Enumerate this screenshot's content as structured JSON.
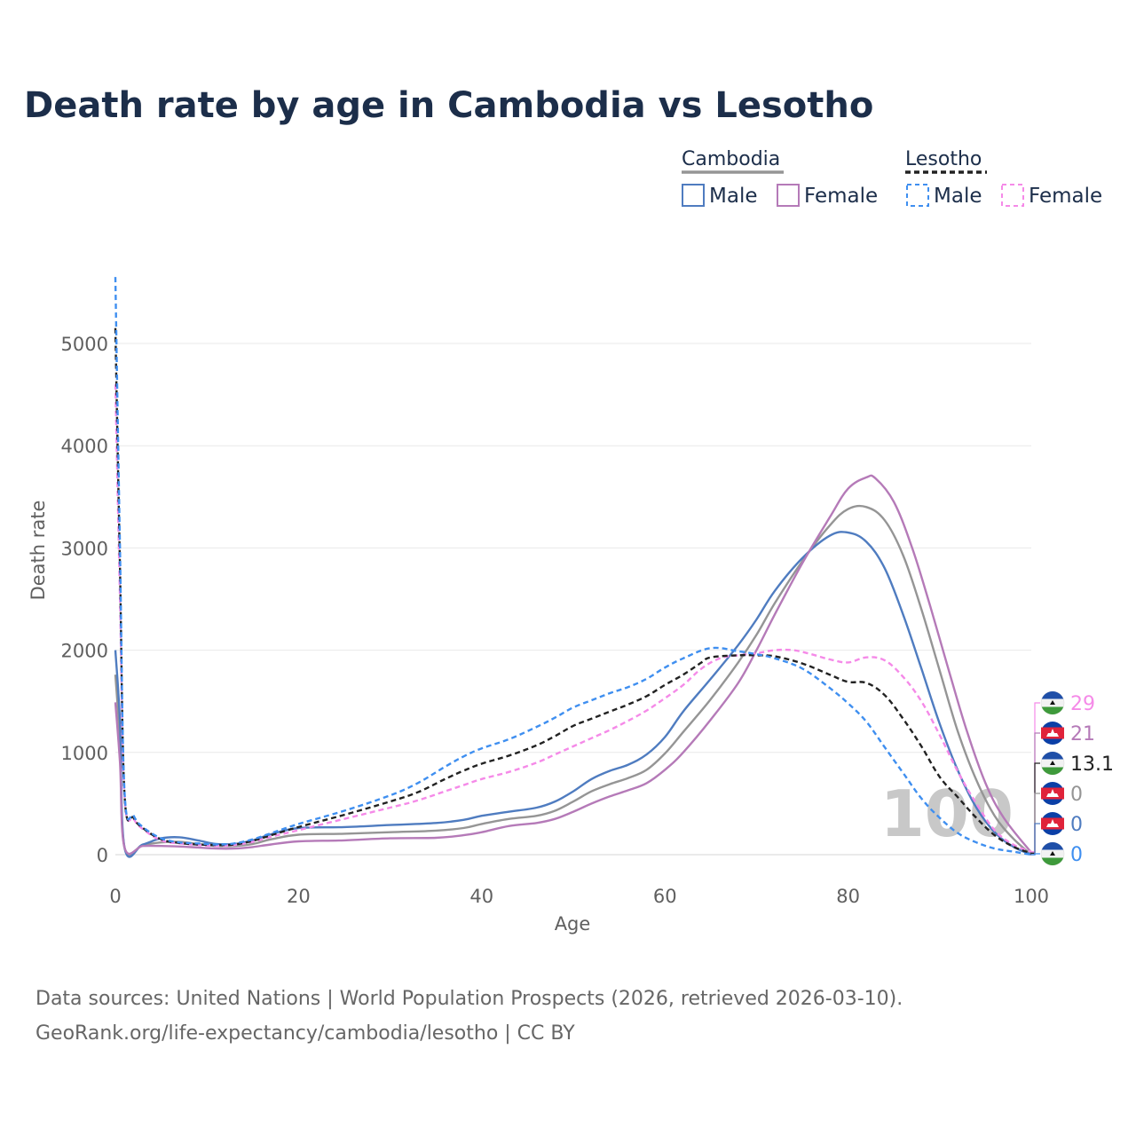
{
  "title": "Death rate by age in Cambodia vs Lesotho",
  "legend": {
    "groups": [
      {
        "name": "Cambodia",
        "style": "solid",
        "items": [
          "Male",
          "Female"
        ]
      },
      {
        "name": "Lesotho",
        "style": "dashed",
        "items": [
          "Male",
          "Female"
        ]
      }
    ]
  },
  "colors": {
    "male": "#4f7cc0",
    "female": "#b57ab8",
    "total_cambodia": "#959595",
    "male_lesotho": "#3f8ff0",
    "female_lesotho": "#f58ae8",
    "total_lesotho": "#222222",
    "title": "#1c2e4a"
  },
  "year_label": "100",
  "end_values": [
    {
      "label": "29",
      "color": "#f58ae8",
      "country": "lesotho"
    },
    {
      "label": "21",
      "color": "#b57ab8",
      "country": "cambodia"
    },
    {
      "label": "13.1",
      "color": "#222222",
      "country": "lesotho"
    },
    {
      "label": "0",
      "color": "#959595",
      "country": "cambodia"
    },
    {
      "label": "0",
      "color": "#4f7cc0",
      "country": "cambodia"
    },
    {
      "label": "0",
      "color": "#3f8ff0",
      "country": "lesotho"
    }
  ],
  "source_lines": [
    "Data sources: United Nations | World Population Prospects (2026, retrieved 2026-03-10).",
    "GeoRank.org/life-expectancy/cambodia/lesotho | CC BY"
  ],
  "chart_data": {
    "type": "line",
    "title": "Death rate by age in Cambodia vs Lesotho",
    "xlabel": "Age",
    "ylabel": "Death rate",
    "xlim": [
      0,
      100
    ],
    "ylim": [
      0,
      5000
    ],
    "xticks": [
      0,
      20,
      40,
      60,
      80,
      100
    ],
    "yticks": [
      0,
      1000,
      2000,
      3000,
      4000,
      5000
    ],
    "grid": true,
    "series": [
      {
        "name": "Cambodia Male",
        "country": "Cambodia",
        "sex": "Male",
        "dash": false,
        "color": "#4f7cc0",
        "points": [
          [
            0,
            2000
          ],
          [
            0.5,
            1300
          ],
          [
            1,
            70
          ],
          [
            3,
            100
          ],
          [
            5,
            160
          ],
          [
            7,
            170
          ],
          [
            9,
            140
          ],
          [
            11,
            105
          ],
          [
            13,
            105
          ],
          [
            15,
            140
          ],
          [
            17,
            200
          ],
          [
            20,
            260
          ],
          [
            25,
            270
          ],
          [
            30,
            290
          ],
          [
            35,
            310
          ],
          [
            38,
            340
          ],
          [
            40,
            380
          ],
          [
            43,
            420
          ],
          [
            46,
            460
          ],
          [
            48,
            520
          ],
          [
            50,
            620
          ],
          [
            52,
            740
          ],
          [
            54,
            820
          ],
          [
            56,
            880
          ],
          [
            58,
            980
          ],
          [
            60,
            1150
          ],
          [
            62,
            1400
          ],
          [
            65,
            1720
          ],
          [
            68,
            2050
          ],
          [
            70,
            2300
          ],
          [
            72,
            2580
          ],
          [
            75,
            2900
          ],
          [
            78,
            3120
          ],
          [
            80,
            3150
          ],
          [
            82,
            3060
          ],
          [
            84,
            2800
          ],
          [
            86,
            2350
          ],
          [
            88,
            1820
          ],
          [
            90,
            1280
          ],
          [
            92,
            820
          ],
          [
            94,
            460
          ],
          [
            96,
            220
          ],
          [
            98,
            80
          ],
          [
            100,
            0
          ]
        ]
      },
      {
        "name": "Cambodia Female",
        "country": "Cambodia",
        "sex": "Female",
        "dash": false,
        "color": "#b57ab8",
        "points": [
          [
            0,
            1490
          ],
          [
            0.5,
            900
          ],
          [
            1,
            70
          ],
          [
            3,
            85
          ],
          [
            5,
            85
          ],
          [
            7,
            80
          ],
          [
            9,
            70
          ],
          [
            11,
            60
          ],
          [
            13,
            60
          ],
          [
            15,
            75
          ],
          [
            17,
            100
          ],
          [
            20,
            130
          ],
          [
            25,
            140
          ],
          [
            30,
            160
          ],
          [
            35,
            165
          ],
          [
            38,
            190
          ],
          [
            40,
            220
          ],
          [
            43,
            280
          ],
          [
            46,
            310
          ],
          [
            48,
            350
          ],
          [
            50,
            420
          ],
          [
            52,
            500
          ],
          [
            54,
            570
          ],
          [
            56,
            630
          ],
          [
            58,
            700
          ],
          [
            60,
            830
          ],
          [
            62,
            1000
          ],
          [
            65,
            1320
          ],
          [
            68,
            1680
          ],
          [
            70,
            2000
          ],
          [
            72,
            2350
          ],
          [
            75,
            2850
          ],
          [
            78,
            3300
          ],
          [
            80,
            3580
          ],
          [
            82,
            3690
          ],
          [
            83,
            3680
          ],
          [
            85,
            3450
          ],
          [
            87,
            3000
          ],
          [
            89,
            2420
          ],
          [
            91,
            1800
          ],
          [
            93,
            1200
          ],
          [
            95,
            700
          ],
          [
            97,
            360
          ],
          [
            100,
            21
          ]
        ]
      },
      {
        "name": "Cambodia Total",
        "country": "Cambodia",
        "sex": "Total",
        "dash": false,
        "color": "#959595",
        "points": [
          [
            0,
            1760
          ],
          [
            0.5,
            1100
          ],
          [
            1,
            70
          ],
          [
            3,
            95
          ],
          [
            5,
            120
          ],
          [
            7,
            125
          ],
          [
            9,
            105
          ],
          [
            11,
            85
          ],
          [
            13,
            85
          ],
          [
            15,
            105
          ],
          [
            17,
            150
          ],
          [
            20,
            195
          ],
          [
            25,
            205
          ],
          [
            30,
            220
          ],
          [
            35,
            235
          ],
          [
            38,
            260
          ],
          [
            40,
            300
          ],
          [
            43,
            350
          ],
          [
            46,
            380
          ],
          [
            48,
            430
          ],
          [
            50,
            520
          ],
          [
            52,
            620
          ],
          [
            54,
            690
          ],
          [
            56,
            750
          ],
          [
            58,
            830
          ],
          [
            60,
            990
          ],
          [
            62,
            1200
          ],
          [
            65,
            1520
          ],
          [
            68,
            1880
          ],
          [
            70,
            2150
          ],
          [
            72,
            2460
          ],
          [
            75,
            2870
          ],
          [
            78,
            3220
          ],
          [
            80,
            3380
          ],
          [
            82,
            3400
          ],
          [
            84,
            3270
          ],
          [
            86,
            2930
          ],
          [
            88,
            2400
          ],
          [
            90,
            1800
          ],
          [
            92,
            1200
          ],
          [
            94,
            730
          ],
          [
            96,
            380
          ],
          [
            98,
            160
          ],
          [
            100,
            0
          ]
        ]
      },
      {
        "name": "Lesotho Male",
        "country": "Lesotho",
        "sex": "Male",
        "dash": true,
        "color": "#3f8ff0",
        "points": [
          [
            0,
            5650
          ],
          [
            0.5,
            3000
          ],
          [
            1,
            620
          ],
          [
            2,
            380
          ],
          [
            3,
            270
          ],
          [
            5,
            160
          ],
          [
            7,
            120
          ],
          [
            9,
            110
          ],
          [
            11,
            100
          ],
          [
            13,
            110
          ],
          [
            15,
            150
          ],
          [
            17,
            210
          ],
          [
            20,
            300
          ],
          [
            25,
            430
          ],
          [
            30,
            580
          ],
          [
            33,
            700
          ],
          [
            36,
            860
          ],
          [
            38,
            960
          ],
          [
            40,
            1040
          ],
          [
            43,
            1130
          ],
          [
            46,
            1250
          ],
          [
            48,
            1340
          ],
          [
            50,
            1440
          ],
          [
            52,
            1510
          ],
          [
            54,
            1580
          ],
          [
            56,
            1640
          ],
          [
            58,
            1720
          ],
          [
            60,
            1830
          ],
          [
            62,
            1920
          ],
          [
            65,
            2020
          ],
          [
            68,
            1990
          ],
          [
            70,
            1960
          ],
          [
            72,
            1920
          ],
          [
            75,
            1820
          ],
          [
            78,
            1630
          ],
          [
            80,
            1480
          ],
          [
            82,
            1300
          ],
          [
            84,
            1050
          ],
          [
            86,
            800
          ],
          [
            88,
            550
          ],
          [
            90,
            360
          ],
          [
            92,
            210
          ],
          [
            94,
            120
          ],
          [
            96,
            60
          ],
          [
            98,
            30
          ],
          [
            100,
            0
          ]
        ]
      },
      {
        "name": "Lesotho Female",
        "country": "Lesotho",
        "sex": "Female",
        "dash": true,
        "color": "#f58ae8",
        "points": [
          [
            0,
            4600
          ],
          [
            0.5,
            2500
          ],
          [
            1,
            560
          ],
          [
            2,
            350
          ],
          [
            3,
            250
          ],
          [
            5,
            140
          ],
          [
            7,
            110
          ],
          [
            9,
            95
          ],
          [
            11,
            85
          ],
          [
            13,
            95
          ],
          [
            15,
            125
          ],
          [
            17,
            175
          ],
          [
            20,
            240
          ],
          [
            25,
            350
          ],
          [
            30,
            460
          ],
          [
            33,
            530
          ],
          [
            36,
            620
          ],
          [
            38,
            680
          ],
          [
            40,
            740
          ],
          [
            43,
            810
          ],
          [
            46,
            900
          ],
          [
            48,
            980
          ],
          [
            50,
            1060
          ],
          [
            52,
            1140
          ],
          [
            54,
            1220
          ],
          [
            56,
            1310
          ],
          [
            58,
            1410
          ],
          [
            60,
            1530
          ],
          [
            62,
            1660
          ],
          [
            64,
            1820
          ],
          [
            66,
            1920
          ],
          [
            68,
            1950
          ],
          [
            70,
            1970
          ],
          [
            72,
            2000
          ],
          [
            74,
            2000
          ],
          [
            76,
            1960
          ],
          [
            78,
            1910
          ],
          [
            80,
            1880
          ],
          [
            82,
            1930
          ],
          [
            84,
            1900
          ],
          [
            86,
            1740
          ],
          [
            88,
            1500
          ],
          [
            90,
            1170
          ],
          [
            92,
            810
          ],
          [
            94,
            500
          ],
          [
            96,
            240
          ],
          [
            98,
            100
          ],
          [
            100,
            29
          ]
        ]
      },
      {
        "name": "Lesotho Total",
        "country": "Lesotho",
        "sex": "Total",
        "dash": true,
        "color": "#222222",
        "points": [
          [
            0,
            5150
          ],
          [
            0.5,
            2800
          ],
          [
            1,
            590
          ],
          [
            2,
            360
          ],
          [
            3,
            260
          ],
          [
            5,
            150
          ],
          [
            7,
            115
          ],
          [
            9,
            100
          ],
          [
            11,
            95
          ],
          [
            13,
            100
          ],
          [
            15,
            135
          ],
          [
            17,
            190
          ],
          [
            20,
            270
          ],
          [
            25,
            390
          ],
          [
            30,
            520
          ],
          [
            33,
            610
          ],
          [
            36,
            740
          ],
          [
            38,
            820
          ],
          [
            40,
            890
          ],
          [
            43,
            970
          ],
          [
            46,
            1070
          ],
          [
            48,
            1160
          ],
          [
            50,
            1260
          ],
          [
            52,
            1330
          ],
          [
            54,
            1400
          ],
          [
            56,
            1470
          ],
          [
            58,
            1550
          ],
          [
            60,
            1660
          ],
          [
            62,
            1760
          ],
          [
            64,
            1880
          ],
          [
            65,
            1930
          ],
          [
            68,
            1950
          ],
          [
            70,
            1950
          ],
          [
            72,
            1940
          ],
          [
            75,
            1870
          ],
          [
            78,
            1760
          ],
          [
            80,
            1690
          ],
          [
            82,
            1680
          ],
          [
            84,
            1560
          ],
          [
            86,
            1330
          ],
          [
            88,
            1060
          ],
          [
            90,
            760
          ],
          [
            92,
            560
          ],
          [
            94,
            360
          ],
          [
            96,
            190
          ],
          [
            98,
            80
          ],
          [
            100,
            13.1
          ]
        ]
      }
    ]
  }
}
